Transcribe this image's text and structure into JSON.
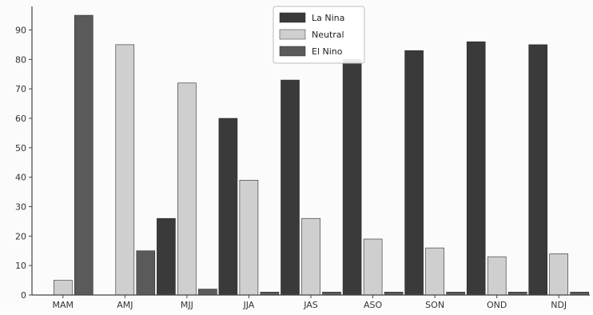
{
  "chart_data": {
    "type": "bar",
    "title": "",
    "xlabel": "",
    "ylabel": "",
    "ylim": [
      0,
      98
    ],
    "yticks": [
      0,
      10,
      20,
      30,
      40,
      50,
      60,
      70,
      80,
      90
    ],
    "grid": false,
    "legend_position": "top-center",
    "categories": [
      "MAM",
      "AMJ",
      "MJJ",
      "JJA",
      "JAS",
      "ASO",
      "SON",
      "OND",
      "NDJ"
    ],
    "series": [
      {
        "name": "La Nina",
        "color": "#3a3a3a",
        "values": [
          0,
          0,
          26,
          60,
          73,
          80,
          83,
          86,
          85
        ]
      },
      {
        "name": "Neutral",
        "color": "#cfcfcf",
        "values": [
          5,
          85,
          72,
          39,
          26,
          19,
          16,
          13,
          14
        ]
      },
      {
        "name": "El Nino",
        "color": "#5a5a5a",
        "values": [
          95,
          15,
          2,
          1,
          1,
          1,
          1,
          1,
          1
        ]
      }
    ]
  }
}
